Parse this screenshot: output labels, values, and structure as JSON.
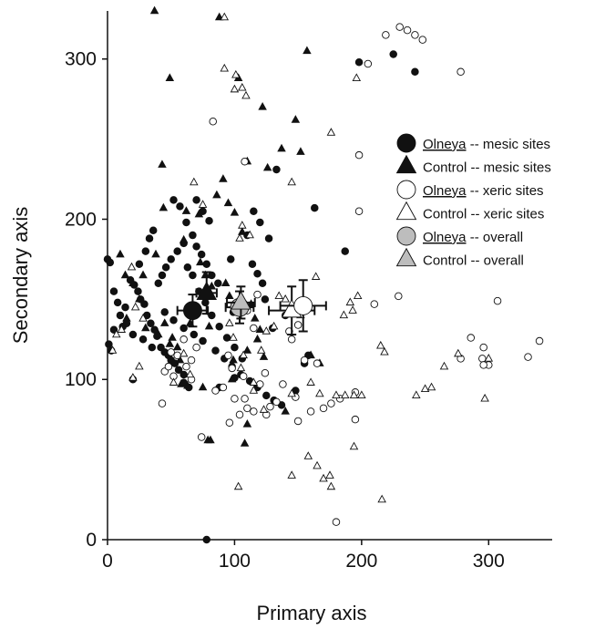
{
  "chart_data": {
    "type": "scatter",
    "xlabel": "Primary axis",
    "ylabel": "Secondary axis",
    "xlim": [
      0,
      350
    ],
    "ylim": [
      0,
      330
    ],
    "xticks": [
      0,
      100,
      200,
      300
    ],
    "yticks": [
      0,
      100,
      200,
      300
    ],
    "grid": false,
    "legend_position": "upper-right",
    "legend": [
      {
        "prefix": "Olneya",
        "suffix": " -- mesic sites",
        "marker": "filled-circle"
      },
      {
        "prefix": "",
        "suffix": "Control -- mesic sites",
        "marker": "filled-triangle"
      },
      {
        "prefix": "Olneya",
        "suffix": " -- xeric sites",
        "marker": "open-circle"
      },
      {
        "prefix": "",
        "suffix": "Control -- xeric sites",
        "marker": "open-triangle"
      },
      {
        "prefix": "Olneya",
        "suffix": " -- overall",
        "marker": "gray-circle"
      },
      {
        "prefix": "",
        "suffix": "Control -- overall",
        "marker": "gray-triangle"
      }
    ],
    "series": [
      {
        "name": "Olneya -- mesic sites",
        "marker": "filled-circle",
        "points": [
          [
            225,
            303
          ],
          [
            242,
            292
          ],
          [
            198,
            298
          ],
          [
            133,
            231
          ],
          [
            163,
            207
          ],
          [
            187,
            180
          ],
          [
            0,
            175
          ],
          [
            2,
            173
          ],
          [
            5,
            155
          ],
          [
            8,
            148
          ],
          [
            10,
            140
          ],
          [
            12,
            133
          ],
          [
            5,
            131
          ],
          [
            1,
            122
          ],
          [
            3,
            118
          ],
          [
            14,
            145
          ],
          [
            18,
            162
          ],
          [
            21,
            159
          ],
          [
            24,
            155
          ],
          [
            26,
            150
          ],
          [
            29,
            147
          ],
          [
            31,
            140
          ],
          [
            34,
            135
          ],
          [
            37,
            131
          ],
          [
            39,
            127
          ],
          [
            42,
            120
          ],
          [
            45,
            117
          ],
          [
            48,
            115
          ],
          [
            50,
            112
          ],
          [
            53,
            110
          ],
          [
            56,
            106
          ],
          [
            60,
            103
          ],
          [
            15,
            135
          ],
          [
            20,
            128
          ],
          [
            28,
            125
          ],
          [
            35,
            120
          ],
          [
            40,
            160
          ],
          [
            43,
            165
          ],
          [
            46,
            170
          ],
          [
            50,
            175
          ],
          [
            55,
            180
          ],
          [
            60,
            185
          ],
          [
            30,
            180
          ],
          [
            33,
            188
          ],
          [
            36,
            193
          ],
          [
            25,
            172
          ],
          [
            52,
            212
          ],
          [
            57,
            208
          ],
          [
            62,
            198
          ],
          [
            67,
            190
          ],
          [
            70,
            183
          ],
          [
            74,
            178
          ],
          [
            78,
            172
          ],
          [
            82,
            165
          ],
          [
            87,
            160
          ],
          [
            63,
            170
          ],
          [
            67,
            165
          ],
          [
            72,
            155
          ],
          [
            77,
            148
          ],
          [
            82,
            140
          ],
          [
            88,
            133
          ],
          [
            94,
            126
          ],
          [
            100,
            120
          ],
          [
            106,
            113
          ],
          [
            45,
            142
          ],
          [
            52,
            137
          ],
          [
            60,
            132
          ],
          [
            68,
            128
          ],
          [
            75,
            124
          ],
          [
            85,
            118
          ],
          [
            92,
            113
          ],
          [
            98,
            108
          ],
          [
            105,
            103
          ],
          [
            112,
            99
          ],
          [
            118,
            95
          ],
          [
            125,
            90
          ],
          [
            131,
            87
          ],
          [
            137,
            84
          ],
          [
            70,
            212
          ],
          [
            75,
            205
          ],
          [
            80,
            199
          ],
          [
            115,
            205
          ],
          [
            120,
            198
          ],
          [
            127,
            188
          ],
          [
            110,
            190
          ],
          [
            114,
            172
          ],
          [
            118,
            166
          ],
          [
            122,
            160
          ],
          [
            97,
            175
          ],
          [
            99,
            142
          ],
          [
            124,
            150
          ],
          [
            130,
            132
          ],
          [
            148,
            93
          ],
          [
            155,
            110
          ],
          [
            158,
            115
          ],
          [
            140,
            140
          ],
          [
            20,
            100
          ],
          [
            60,
            98
          ],
          [
            64,
            95
          ],
          [
            88,
            95
          ],
          [
            100,
            101
          ],
          [
            78,
            0
          ]
        ]
      },
      {
        "name": "Control -- mesic sites",
        "marker": "filled-triangle",
        "points": [
          [
            37,
            330
          ],
          [
            49,
            288
          ],
          [
            88,
            326
          ],
          [
            103,
            288
          ],
          [
            157,
            305
          ],
          [
            122,
            270
          ],
          [
            148,
            262
          ],
          [
            137,
            244
          ],
          [
            152,
            242
          ],
          [
            110,
            236
          ],
          [
            126,
            232
          ],
          [
            43,
            234
          ],
          [
            62,
            205
          ],
          [
            72,
            203
          ],
          [
            86,
            215
          ],
          [
            91,
            225
          ],
          [
            95,
            210
          ],
          [
            100,
            204
          ],
          [
            106,
            192
          ],
          [
            60,
            187
          ],
          [
            73,
            173
          ],
          [
            77,
            165
          ],
          [
            93,
            160
          ],
          [
            96,
            152
          ],
          [
            82,
            158
          ],
          [
            70,
            145
          ],
          [
            65,
            135
          ],
          [
            51,
            126
          ],
          [
            55,
            120
          ],
          [
            57,
            112
          ],
          [
            58,
            97
          ],
          [
            63,
            96
          ],
          [
            75,
            95
          ],
          [
            79,
            62
          ],
          [
            81,
            62
          ],
          [
            108,
            60
          ],
          [
            110,
            72
          ],
          [
            98,
            100
          ],
          [
            99,
            112
          ],
          [
            118,
            125
          ],
          [
            123,
            114
          ],
          [
            140,
            80
          ],
          [
            160,
            115
          ],
          [
            167,
            110
          ],
          [
            113,
            147
          ],
          [
            116,
            138
          ],
          [
            120,
            131
          ],
          [
            28,
            165
          ],
          [
            25,
            150
          ],
          [
            10,
            178
          ],
          [
            14,
            165
          ],
          [
            20,
            160
          ],
          [
            30,
            132
          ],
          [
            40,
            128
          ],
          [
            49,
            122
          ],
          [
            45,
            135
          ],
          [
            38,
            178
          ],
          [
            15,
            138
          ],
          [
            80,
            133
          ],
          [
            44,
            207
          ],
          [
            110,
            118
          ]
        ]
      },
      {
        "name": "Olneya -- xeric sites",
        "marker": "open-circle",
        "points": [
          [
            230,
            320
          ],
          [
            236,
            318
          ],
          [
            242,
            315
          ],
          [
            248,
            312
          ],
          [
            219,
            315
          ],
          [
            205,
            297
          ],
          [
            278,
            292
          ],
          [
            83,
            261
          ],
          [
            108,
            236
          ],
          [
            198,
            240
          ],
          [
            198,
            205
          ],
          [
            229,
            152
          ],
          [
            210,
            147
          ],
          [
            307,
            149
          ],
          [
            340,
            124
          ],
          [
            331,
            114
          ],
          [
            296,
            120
          ],
          [
            295,
            113
          ],
          [
            300,
            109
          ],
          [
            296,
            109
          ],
          [
            286,
            126
          ],
          [
            278,
            113
          ],
          [
            118,
            153
          ],
          [
            110,
            143
          ],
          [
            115,
            132
          ],
          [
            143,
            130
          ],
          [
            150,
            134
          ],
          [
            133,
            86
          ],
          [
            128,
            83
          ],
          [
            150,
            74
          ],
          [
            170,
            82
          ],
          [
            176,
            85
          ],
          [
            183,
            88
          ],
          [
            195,
            75
          ],
          [
            180,
            11
          ],
          [
            145,
            125
          ],
          [
            96,
            73
          ],
          [
            110,
            82
          ],
          [
            107,
            102
          ],
          [
            98,
            107
          ],
          [
            74,
            64
          ],
          [
            104,
            78
          ],
          [
            115,
            80
          ],
          [
            85,
            93
          ],
          [
            91,
            95
          ],
          [
            55,
            115
          ],
          [
            50,
            117
          ],
          [
            45,
            105
          ],
          [
            43,
            85
          ],
          [
            48,
            108
          ],
          [
            52,
            102
          ],
          [
            62,
            108
          ],
          [
            66,
            100
          ],
          [
            95,
            115
          ],
          [
            100,
            88
          ],
          [
            120,
            97
          ],
          [
            125,
            78
          ],
          [
            108,
            88
          ],
          [
            165,
            110
          ],
          [
            155,
            112
          ],
          [
            60,
            125
          ],
          [
            70,
            120
          ],
          [
            66,
            112
          ],
          [
            124,
            104
          ],
          [
            138,
            97
          ],
          [
            148,
            89
          ],
          [
            160,
            80
          ],
          [
            195,
            92
          ]
        ]
      },
      {
        "name": "Control -- xeric sites",
        "marker": "open-triangle",
        "points": [
          [
            92,
            326
          ],
          [
            101,
            290
          ],
          [
            92,
            294
          ],
          [
            100,
            281
          ],
          [
            106,
            282
          ],
          [
            109,
            277
          ],
          [
            196,
            288
          ],
          [
            176,
            254
          ],
          [
            145,
            223
          ],
          [
            68,
            223
          ],
          [
            75,
            209
          ],
          [
            106,
            196
          ],
          [
            104,
            188
          ],
          [
            112,
            190
          ],
          [
            186,
            140
          ],
          [
            193,
            143
          ],
          [
            197,
            152
          ],
          [
            191,
            148
          ],
          [
            164,
            164
          ],
          [
            215,
            121
          ],
          [
            218,
            117
          ],
          [
            243,
            90
          ],
          [
            250,
            94
          ],
          [
            255,
            95
          ],
          [
            265,
            108
          ],
          [
            276,
            116
          ],
          [
            297,
            88
          ],
          [
            300,
            113
          ],
          [
            175,
            40
          ],
          [
            176,
            33
          ],
          [
            216,
            25
          ],
          [
            158,
            52
          ],
          [
            165,
            46
          ],
          [
            170,
            38
          ],
          [
            145,
            40
          ],
          [
            123,
            81
          ],
          [
            115,
            98
          ],
          [
            145,
            91
          ],
          [
            167,
            91
          ],
          [
            180,
            90
          ],
          [
            187,
            90
          ],
          [
            194,
            90
          ],
          [
            200,
            90
          ],
          [
            194,
            58
          ],
          [
            20,
            101
          ],
          [
            25,
            108
          ],
          [
            60,
            116
          ],
          [
            52,
            98
          ],
          [
            65,
            103
          ],
          [
            115,
            93
          ],
          [
            105,
            107
          ],
          [
            107,
            115
          ],
          [
            99,
            126
          ],
          [
            131,
            133
          ],
          [
            121,
            118
          ],
          [
            125,
            130
          ],
          [
            103,
            33
          ],
          [
            4,
            118
          ],
          [
            7,
            128
          ],
          [
            11,
            131
          ],
          [
            19,
            170
          ],
          [
            96,
            135
          ],
          [
            135,
            152
          ],
          [
            140,
            150
          ],
          [
            152,
            140
          ],
          [
            22,
            145
          ],
          [
            28,
            138
          ],
          [
            160,
            98
          ]
        ]
      }
    ],
    "summary": [
      {
        "name": "Olneya -- mesic sites",
        "marker": "filled-circle",
        "x": 67,
        "y": 143,
        "xerr": 12,
        "yerr": 10
      },
      {
        "name": "Control -- mesic sites",
        "marker": "filled-triangle",
        "x": 78,
        "y": 154,
        "xerr": 8,
        "yerr": 13
      },
      {
        "name": "Olneya -- overall",
        "marker": "gray-circle",
        "x": 104,
        "y": 145,
        "xerr": 11,
        "yerr": 10
      },
      {
        "name": "Control -- overall",
        "marker": "gray-triangle",
        "x": 105,
        "y": 148,
        "xerr": 11,
        "yerr": 10
      },
      {
        "name": "Control -- xeric sites",
        "marker": "open-triangle",
        "x": 145,
        "y": 143,
        "xerr": 18,
        "yerr": 15
      },
      {
        "name": "Olneya -- xeric sites",
        "marker": "open-circle",
        "x": 154,
        "y": 146,
        "xerr": 18,
        "yerr": 16
      }
    ]
  }
}
